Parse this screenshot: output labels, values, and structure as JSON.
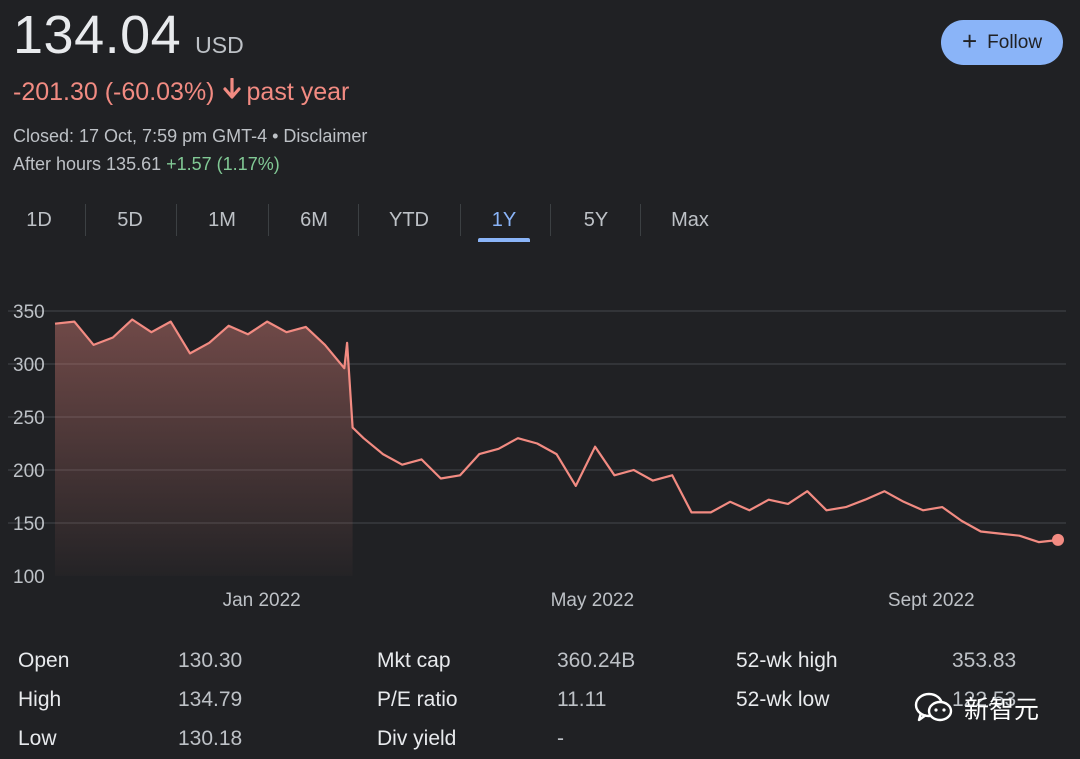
{
  "quote": {
    "price": "134.04",
    "currency": "USD",
    "change_text": "-201.30 (-60.03%)",
    "change_period": "past year",
    "change_arrow_icon": "arrow-down-icon",
    "closed_text": "Closed: 17 Oct, 7:59 pm GMT-4 • Disclaimer",
    "after_hours_label": "After hours 135.61",
    "after_hours_change": "+1.57 (1.17%)"
  },
  "follow_button": {
    "label": "Follow",
    "icon": "plus-icon"
  },
  "tabs": [
    {
      "label": "1D"
    },
    {
      "label": "5D"
    },
    {
      "label": "1M"
    },
    {
      "label": "6M"
    },
    {
      "label": "YTD"
    },
    {
      "label": "1Y",
      "active": true
    },
    {
      "label": "5Y"
    },
    {
      "label": "Max"
    }
  ],
  "colors": {
    "line": "#f28b82",
    "accent": "#8ab4f8",
    "positive": "#81c995",
    "background": "#202124"
  },
  "chart_data": {
    "type": "area",
    "title": "",
    "xlabel": "",
    "ylabel": "",
    "ylim": [
      100,
      350
    ],
    "yticks": [
      350,
      300,
      250,
      200,
      150,
      100
    ],
    "xtick_labels": [
      "Jan 2022",
      "May 2022",
      "Sept 2022"
    ],
    "xtick_dates": [
      "2022-01-01",
      "2022-05-01",
      "2022-09-01"
    ],
    "x_range": [
      "2021-10-18",
      "2022-10-17"
    ],
    "grid": true,
    "series": [
      {
        "x": [
          "2021-10-18",
          "2021-10-25",
          "2021-11-01",
          "2021-11-08",
          "2021-11-15",
          "2021-11-22",
          "2021-11-29",
          "2021-12-06",
          "2021-12-13",
          "2021-12-20",
          "2021-12-27",
          "2022-01-03",
          "2022-01-10",
          "2022-01-17",
          "2022-01-24",
          "2022-01-31",
          "2022-02-01",
          "2022-02-03",
          "2022-02-07",
          "2022-02-14",
          "2022-02-21",
          "2022-02-28",
          "2022-03-07",
          "2022-03-14",
          "2022-03-21",
          "2022-03-28",
          "2022-04-04",
          "2022-04-11",
          "2022-04-18",
          "2022-04-25",
          "2022-05-02",
          "2022-05-09",
          "2022-05-16",
          "2022-05-23",
          "2022-05-30",
          "2022-06-06",
          "2022-06-13",
          "2022-06-20",
          "2022-06-27",
          "2022-07-04",
          "2022-07-11",
          "2022-07-18",
          "2022-07-25",
          "2022-08-01",
          "2022-08-08",
          "2022-08-15",
          "2022-08-22",
          "2022-08-29",
          "2022-09-05",
          "2022-09-12",
          "2022-09-19",
          "2022-09-26",
          "2022-10-03",
          "2022-10-10",
          "2022-10-17"
        ],
        "values": [
          338,
          340,
          318,
          325,
          342,
          330,
          340,
          310,
          320,
          336,
          328,
          340,
          330,
          335,
          318,
          296,
          320,
          240,
          230,
          215,
          205,
          210,
          192,
          195,
          215,
          220,
          230,
          225,
          215,
          185,
          222,
          195,
          200,
          190,
          195,
          160,
          160,
          170,
          162,
          172,
          168,
          180,
          162,
          165,
          172,
          180,
          170,
          162,
          165,
          152,
          142,
          140,
          138,
          132,
          134
        ]
      }
    ],
    "last_point": {
      "x": "2022-10-17",
      "y": 134.04
    }
  },
  "stats": {
    "rows": [
      {
        "label": "Open",
        "value": "130.30"
      },
      {
        "label": "High",
        "value": "134.79"
      },
      {
        "label": "Low",
        "value": "130.18"
      },
      {
        "label": "Mkt cap",
        "value": "360.24B"
      },
      {
        "label": "P/E ratio",
        "value": "11.11"
      },
      {
        "label": "Div yield",
        "value": "-"
      },
      {
        "label": "52-wk high",
        "value": "353.83"
      },
      {
        "label": "52-wk low",
        "value": "122.53"
      }
    ]
  },
  "watermark": {
    "text": "新智元",
    "icon": "wechat-icon"
  }
}
